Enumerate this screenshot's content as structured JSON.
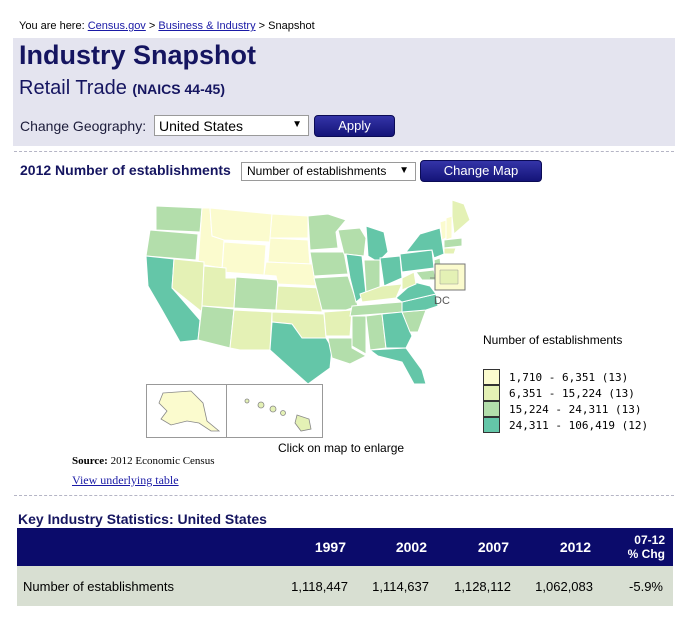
{
  "breadcrumb": {
    "prefix": "You are here:",
    "link1": "Census.gov",
    "sep1": ">",
    "link2": "Business & Industry",
    "sep2": ">",
    "current": "Snapshot"
  },
  "header": {
    "title": "Industry Snapshot",
    "industry": "Retail Trade",
    "naics": "(NAICS 44-45)",
    "geo_label": "Change Geography:",
    "geo_value": "United States",
    "apply_label": "Apply"
  },
  "map_section": {
    "title": "2012 Number of establishments",
    "measure_value": "Number of establishments",
    "change_map_label": "Change Map",
    "dc_label": "DC",
    "caption": "Click on map to enlarge",
    "source_label": "Source:",
    "source_value": "2012 Economic Census",
    "view_table_label": "View underlying table",
    "legend_title": "Number of establishments",
    "legend": [
      {
        "range": "1,710 - 6,351 (13)",
        "color": "#fbfbce"
      },
      {
        "range": "6,351 - 15,224 (13)",
        "color": "#e4f1b5"
      },
      {
        "range": "15,224 - 24,311 (13)",
        "color": "#b3deab"
      },
      {
        "range": "24,311 - 106,419 (12)",
        "color": "#64c6a8"
      }
    ]
  },
  "stats": {
    "title": "Key Industry Statistics: United States",
    "columns": [
      "1997",
      "2002",
      "2007",
      "2012"
    ],
    "chg_label_1": "07-12",
    "chg_label_2": "% Chg",
    "rows": [
      {
        "label": "Number of establishments",
        "values": [
          "1,118,447",
          "1,114,637",
          "1,128,112",
          "1,062,083"
        ],
        "chg": "-5.9%"
      }
    ]
  }
}
